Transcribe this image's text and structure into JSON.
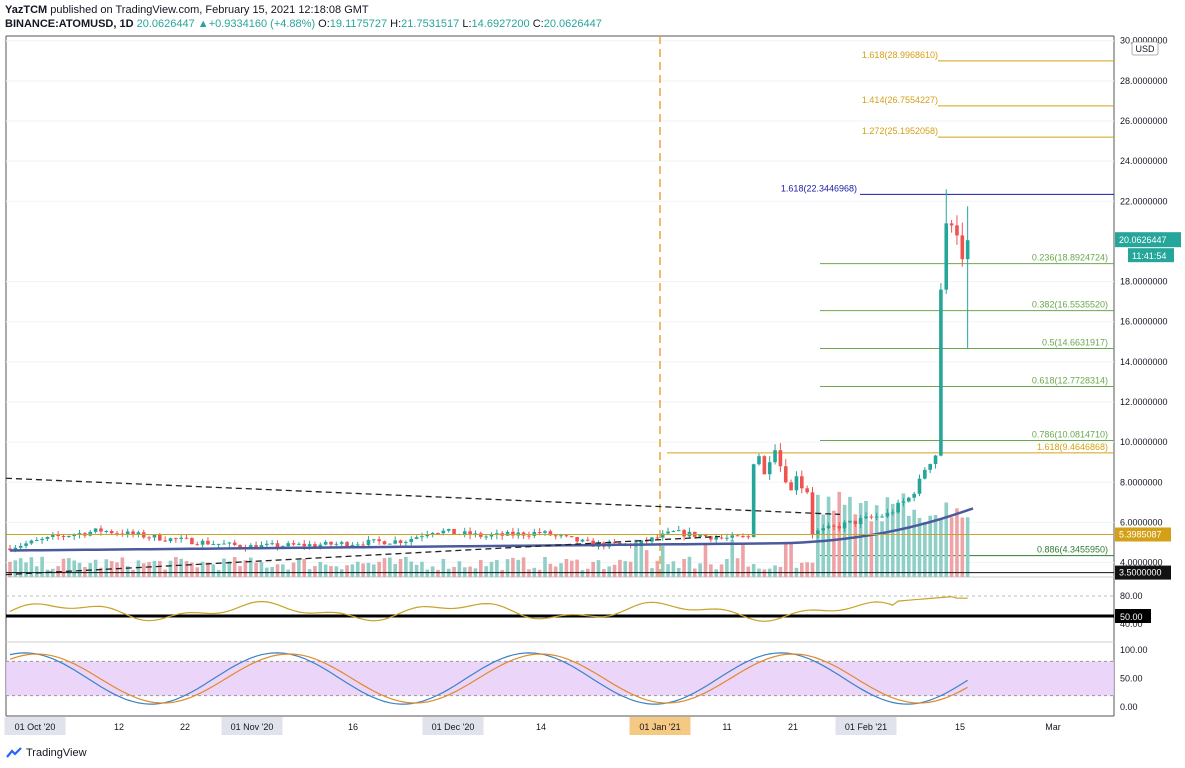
{
  "header": {
    "author": "YazTCM",
    "published_text": "published on TradingView.com, February 15, 2021 12:18:08 GMT",
    "symbol": "BINANCE:ATOMUSD, 1D",
    "last": "20.0626447",
    "change_arrow": "▲",
    "change": "+0.9334160 (+4.88%)",
    "o_label": "O:",
    "o_value": "19.1175727",
    "h_label": "H:",
    "h_value": "21.7531517",
    "l_label": "L:",
    "l_value": "14.6927200",
    "c_label": "C:",
    "c_value": "20.0626447"
  },
  "price_axis": {
    "currency": "USD",
    "ticks": [
      "30.0000000",
      "28.0000000",
      "26.0000000",
      "24.0000000",
      "22.0000000",
      "18.0000000",
      "16.0000000",
      "14.0000000",
      "12.0000000",
      "10.0000000",
      "8.0000000",
      "6.0000000",
      "4.0000000"
    ],
    "tick_values": [
      30,
      28,
      26,
      24,
      22,
      18,
      16,
      14,
      12,
      10,
      8,
      6,
      4
    ],
    "last_price_label": "20.0626447",
    "countdown_label": "11:41:54",
    "support_label_1": "5.3985087",
    "support_label_2": "3.5000000"
  },
  "fib_levels": [
    {
      "text": "1.618(28.9968610)",
      "price": 28.996861,
      "color": "#d4a017",
      "label_x": 938
    },
    {
      "text": "1.414(26.7554227)",
      "price": 26.7554227,
      "color": "#d4a017",
      "label_x": 938
    },
    {
      "text": "1.272(25.1952058)",
      "price": 25.1952058,
      "color": "#d4a017",
      "label_x": 938
    },
    {
      "text": "1.618(22.3446968)",
      "price": 22.3446968,
      "color": "#1a1aa6",
      "label_x": 857
    },
    {
      "text": "0.236(18.8924724)",
      "price": 18.8924724,
      "color": "#6aa84f",
      "label_x": 1108
    },
    {
      "text": "0.382(16.5535520)",
      "price": 16.553552,
      "color": "#6aa84f",
      "label_x": 1108
    },
    {
      "text": "0.5(14.6631917)",
      "price": 14.6631917,
      "color": "#6aa84f",
      "label_x": 1108
    },
    {
      "text": "0.618(12.7728314)",
      "price": 12.7728314,
      "color": "#6aa84f",
      "label_x": 1108
    },
    {
      "text": "0.786(10.0814710)",
      "price": 10.081471,
      "color": "#6aa84f",
      "label_x": 1108
    },
    {
      "text": "1.618(9.4646868)",
      "price": 9.4646868,
      "color": "#d4a017",
      "label_x": 1108
    },
    {
      "text": "0.886(4.3455950)",
      "price": 4.345595,
      "color": "#2e7d32",
      "label_x": 1108
    }
  ],
  "rsi_panel": {
    "ticks": [
      "80.00",
      "40.00"
    ],
    "level_label": "50.00"
  },
  "stoch_panel": {
    "ticks": [
      "100.00",
      "50.00",
      "0.00"
    ]
  },
  "time_axis": {
    "labels": [
      {
        "text": "01",
        "highlight": false
      },
      {
        "text": "01 Oct '20",
        "highlight": true
      },
      {
        "text": "12",
        "highlight": false
      },
      {
        "text": "22",
        "highlight": false
      },
      {
        "text": "01 Nov '20",
        "highlight": true
      },
      {
        "text": "16",
        "highlight": false
      },
      {
        "text": "01 Dec '20",
        "highlight": true
      },
      {
        "text": "14",
        "highlight": false
      },
      {
        "text": "01 Jan '21",
        "highlight": "orange"
      },
      {
        "text": "11",
        "highlight": false
      },
      {
        "text": "21",
        "highlight": false
      },
      {
        "text": "01 Feb '21",
        "highlight": true
      },
      {
        "text": "15",
        "highlight": false
      },
      {
        "text": "Mar",
        "highlight": false
      }
    ]
  },
  "colors": {
    "up": "#26a69a",
    "down": "#ef5350",
    "up_vol": "#8fcfc8",
    "down_vol": "#eea3a6",
    "ma": "#4a5a9c",
    "rsi": "#c9a227",
    "stoch_k": "#3b82c4",
    "stoch_d": "#e08a2c",
    "stoch_band": "#e6cbf8"
  },
  "footer": {
    "brand": "TradingView"
  }
}
